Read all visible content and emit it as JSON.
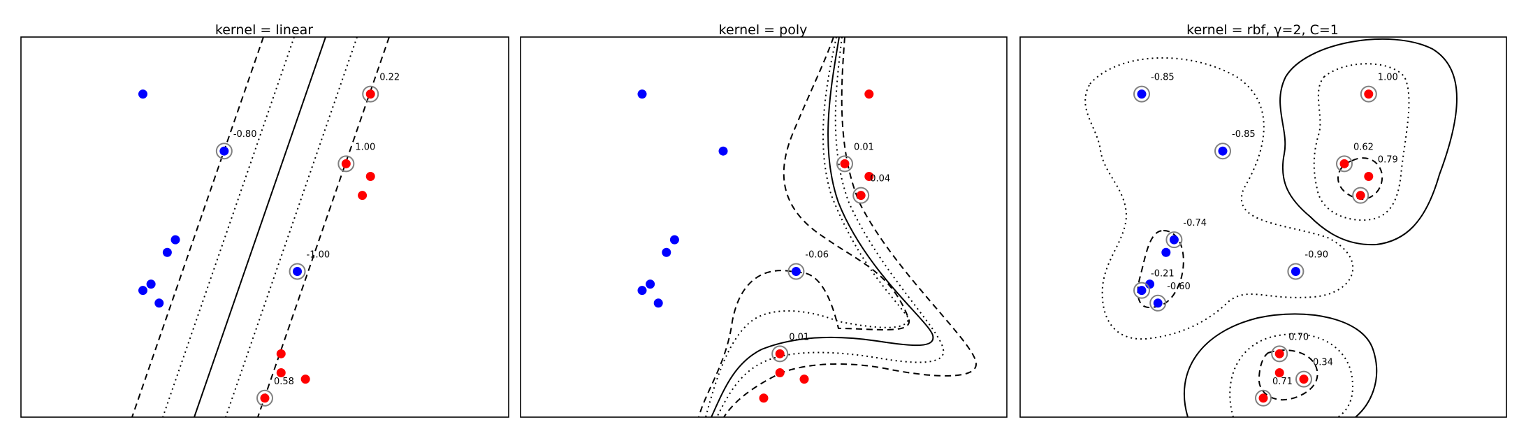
{
  "colors": {
    "class_neg": "#0000ff",
    "class_pos": "#ff0000",
    "support_ring": "#808080",
    "line": "#000000"
  },
  "chart_data": [
    {
      "type": "scatter",
      "title": "kernel = linear",
      "xlim": [
        0,
        6
      ],
      "ylim": [
        0,
        6
      ],
      "contours": {
        "levels": [
          -1,
          -0.5,
          0,
          0.5,
          1
        ],
        "styles": [
          "dashed",
          "dotted",
          "solid",
          "dotted",
          "dashed"
        ]
      },
      "points": [
        {
          "x": 1.5,
          "y": 5.1,
          "cls": -1,
          "sv": false
        },
        {
          "x": 2.5,
          "y": 4.2,
          "cls": -1,
          "sv": true,
          "label": "-0.80"
        },
        {
          "x": 1.9,
          "y": 2.8,
          "cls": -1,
          "sv": false
        },
        {
          "x": 1.8,
          "y": 2.6,
          "cls": -1,
          "sv": false
        },
        {
          "x": 3.4,
          "y": 2.3,
          "cls": -1,
          "sv": true,
          "label": "-1.00"
        },
        {
          "x": 1.6,
          "y": 2.1,
          "cls": -1,
          "sv": false
        },
        {
          "x": 1.5,
          "y": 2.0,
          "cls": -1,
          "sv": false
        },
        {
          "x": 1.7,
          "y": 1.8,
          "cls": -1,
          "sv": false
        },
        {
          "x": 4.3,
          "y": 5.1,
          "cls": 1,
          "sv": true,
          "label": "0.22"
        },
        {
          "x": 4.0,
          "y": 4.0,
          "cls": 1,
          "sv": true,
          "label": "1.00"
        },
        {
          "x": 4.3,
          "y": 3.8,
          "cls": 1,
          "sv": false
        },
        {
          "x": 4.2,
          "y": 3.5,
          "cls": 1,
          "sv": false
        },
        {
          "x": 3.2,
          "y": 1.0,
          "cls": 1,
          "sv": false
        },
        {
          "x": 3.2,
          "y": 0.7,
          "cls": 1,
          "sv": false
        },
        {
          "x": 3.5,
          "y": 0.6,
          "cls": 1,
          "sv": false
        },
        {
          "x": 3.0,
          "y": 0.3,
          "cls": 1,
          "sv": true,
          "label": "0.58"
        }
      ]
    },
    {
      "type": "scatter",
      "title": "kernel = poly",
      "xlim": [
        0,
        6
      ],
      "ylim": [
        0,
        6
      ],
      "contours": {
        "levels": [
          -1,
          -0.5,
          0,
          0.5,
          1
        ],
        "styles": [
          "dashed",
          "dotted",
          "solid",
          "dotted",
          "dashed"
        ]
      },
      "points": [
        {
          "x": 1.5,
          "y": 5.1,
          "cls": -1,
          "sv": false
        },
        {
          "x": 2.5,
          "y": 4.2,
          "cls": -1,
          "sv": false
        },
        {
          "x": 1.9,
          "y": 2.8,
          "cls": -1,
          "sv": false
        },
        {
          "x": 1.8,
          "y": 2.6,
          "cls": -1,
          "sv": false
        },
        {
          "x": 3.4,
          "y": 2.3,
          "cls": -1,
          "sv": true,
          "label": "-0.06"
        },
        {
          "x": 1.6,
          "y": 2.1,
          "cls": -1,
          "sv": false
        },
        {
          "x": 1.5,
          "y": 2.0,
          "cls": -1,
          "sv": false
        },
        {
          "x": 1.7,
          "y": 1.8,
          "cls": -1,
          "sv": false
        },
        {
          "x": 4.3,
          "y": 5.1,
          "cls": 1,
          "sv": false
        },
        {
          "x": 4.0,
          "y": 4.0,
          "cls": 1,
          "sv": true,
          "label": "0.01"
        },
        {
          "x": 4.3,
          "y": 3.8,
          "cls": 1,
          "sv": false
        },
        {
          "x": 4.2,
          "y": 3.5,
          "cls": 1,
          "sv": true,
          "label": "0.04"
        },
        {
          "x": 3.2,
          "y": 1.0,
          "cls": 1,
          "sv": true,
          "label": "0.01"
        },
        {
          "x": 3.2,
          "y": 0.7,
          "cls": 1,
          "sv": false
        },
        {
          "x": 3.5,
          "y": 0.6,
          "cls": 1,
          "sv": false
        },
        {
          "x": 3.0,
          "y": 0.3,
          "cls": 1,
          "sv": false
        }
      ]
    },
    {
      "type": "scatter",
      "title": "kernel = rbf, γ=2, C=1",
      "xlim": [
        0,
        6
      ],
      "ylim": [
        0,
        6
      ],
      "contours": {
        "levels": [
          -1,
          -0.5,
          0,
          0.5,
          1
        ],
        "styles": [
          "dashed",
          "dotted",
          "solid",
          "dotted",
          "dashed"
        ]
      },
      "points": [
        {
          "x": 1.5,
          "y": 5.1,
          "cls": -1,
          "sv": true,
          "label": "-0.85"
        },
        {
          "x": 2.5,
          "y": 4.2,
          "cls": -1,
          "sv": true,
          "label": "-0.85"
        },
        {
          "x": 1.9,
          "y": 2.8,
          "cls": -1,
          "sv": true,
          "label": "-0.74"
        },
        {
          "x": 1.8,
          "y": 2.6,
          "cls": -1,
          "sv": false
        },
        {
          "x": 3.4,
          "y": 2.3,
          "cls": -1,
          "sv": true,
          "label": "-0.90"
        },
        {
          "x": 1.6,
          "y": 2.1,
          "cls": -1,
          "sv": false
        },
        {
          "x": 1.5,
          "y": 2.0,
          "cls": -1,
          "sv": true,
          "label": "-0.21"
        },
        {
          "x": 1.7,
          "y": 1.8,
          "cls": -1,
          "sv": true,
          "label": "-0.60"
        },
        {
          "x": 4.3,
          "y": 5.1,
          "cls": 1,
          "sv": true,
          "label": "1.00"
        },
        {
          "x": 4.0,
          "y": 4.0,
          "cls": 1,
          "sv": true,
          "label": "0.62"
        },
        {
          "x": 4.3,
          "y": 3.8,
          "cls": 1,
          "sv": false,
          "label": "0.79"
        },
        {
          "x": 4.2,
          "y": 3.5,
          "cls": 1,
          "sv": true
        },
        {
          "x": 3.2,
          "y": 1.0,
          "cls": 1,
          "sv": true,
          "label": "0.70"
        },
        {
          "x": 3.2,
          "y": 0.7,
          "cls": 1,
          "sv": false
        },
        {
          "x": 3.5,
          "y": 0.6,
          "cls": 1,
          "sv": true,
          "label": "0.34"
        },
        {
          "x": 3.0,
          "y": 0.3,
          "cls": 1,
          "sv": true,
          "label": "0.71"
        }
      ]
    }
  ]
}
